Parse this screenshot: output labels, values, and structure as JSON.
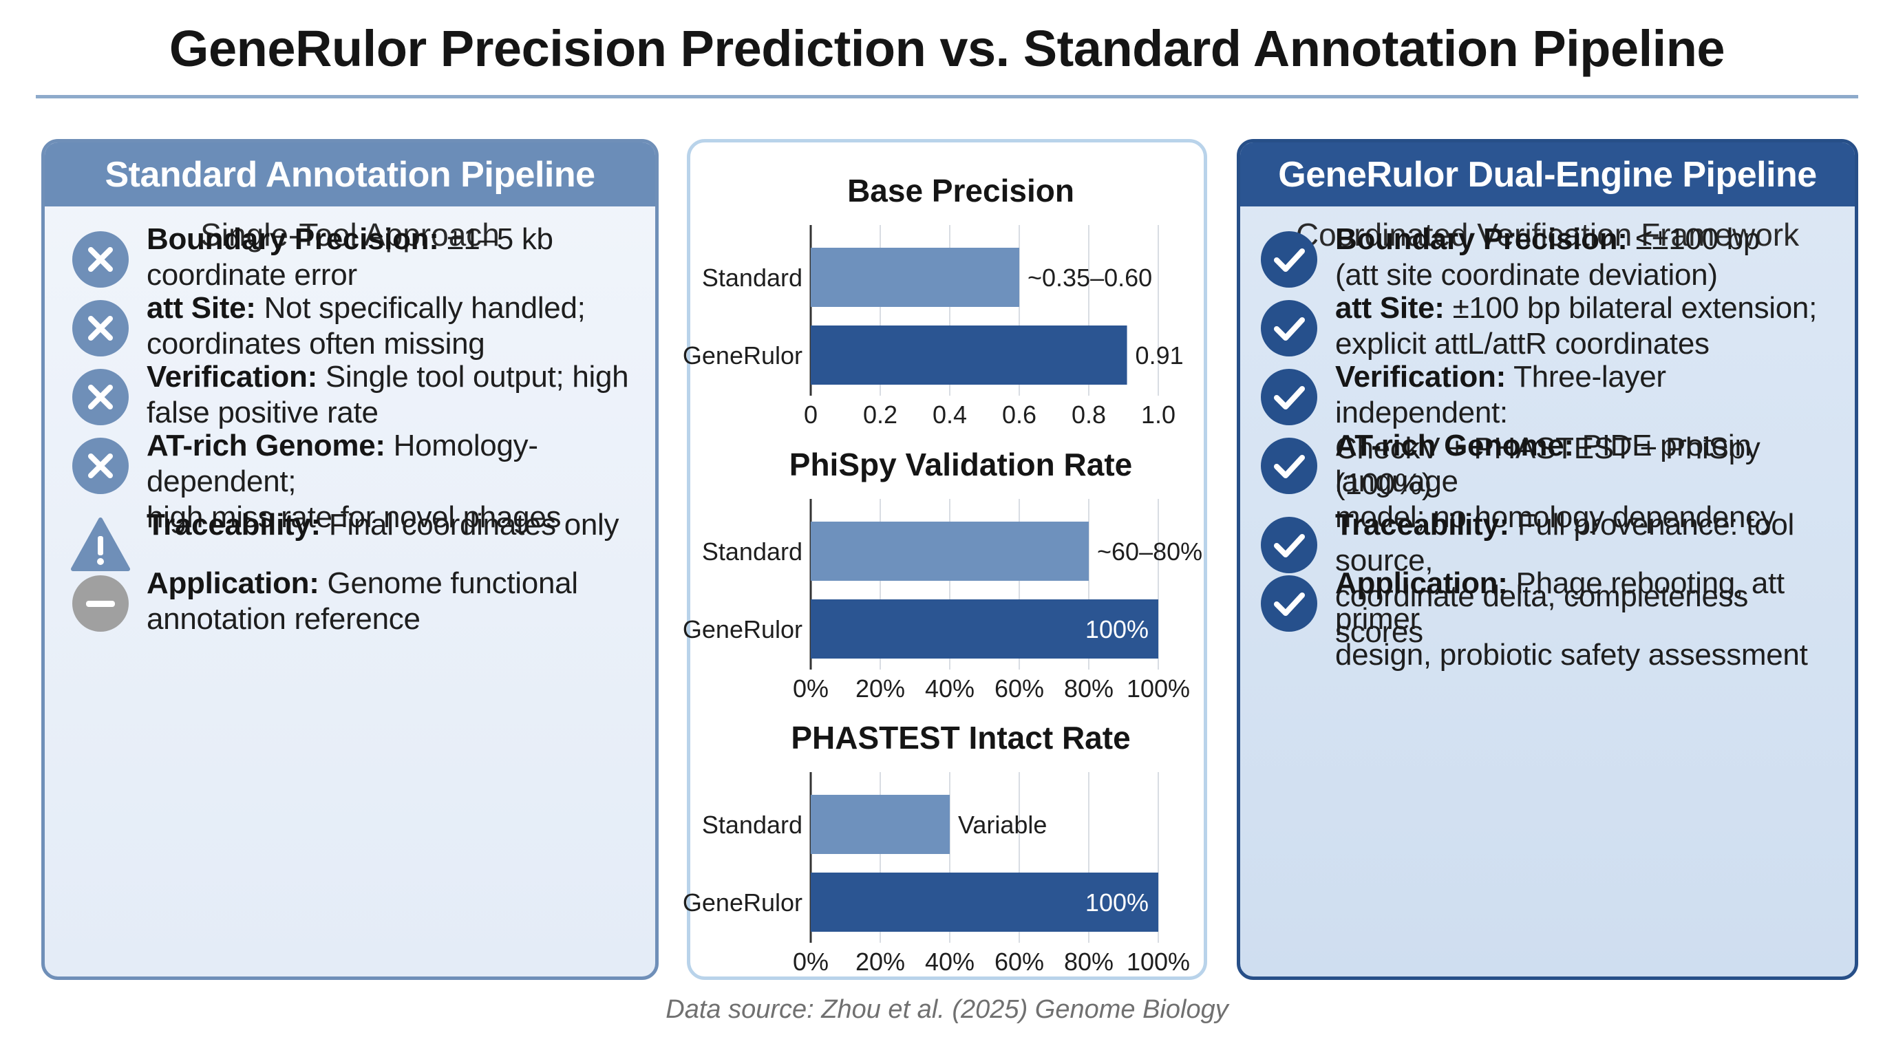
{
  "title": "GeneRulor Precision Prediction vs. Standard Annotation Pipeline",
  "colors": {
    "standard_bar": "#6e91bd",
    "generulor_bar": "#2b5592",
    "left_header": "#6b8db8",
    "right_header": "#2b5592",
    "cross_icon": "#6f8fb8",
    "check_icon": "#26508c",
    "neutral_icon": "#a0a0a0"
  },
  "left_panel": {
    "header": "Standard Annotation Pipeline",
    "subtitle": "Single-Tool Approach",
    "items": [
      {
        "icon": "cross-icon",
        "label": "Boundary Precision:",
        "line1": "±1–5 kb",
        "line2": "coordinate error"
      },
      {
        "icon": "cross-icon",
        "label": "att Site:",
        "line1": "Not specifically handled;",
        "line2": "coordinates often missing"
      },
      {
        "icon": "cross-icon",
        "label": "Verification:",
        "line1": "Single tool output; high",
        "line2": "false positive rate"
      },
      {
        "icon": "cross-icon",
        "label": "AT-rich Genome:",
        "line1": "Homology-dependent;",
        "line2": "high miss rate for novel phages"
      },
      {
        "icon": "warning-icon",
        "label": "Traceability:",
        "line1": "Final coordinates only",
        "line2": ""
      },
      {
        "icon": "minus-icon",
        "label": "Application:",
        "line1": "Genome functional",
        "line2": "annotation reference"
      }
    ]
  },
  "right_panel": {
    "header": "GeneRulor Dual-Engine Pipeline",
    "subtitle": "Coordinated Verification Framework",
    "items": [
      {
        "icon": "check-icon",
        "label": "Boundary Precision:",
        "line1": "≤±100 bp",
        "line2": "(att site coordinate deviation)"
      },
      {
        "icon": "check-icon",
        "label": "att Site:",
        "line1": "±100 bp bilateral extension;",
        "line2": "explicit attL/attR coordinates"
      },
      {
        "icon": "check-icon",
        "label": "Verification:",
        "line1": "Three-layer independent:",
        "line2": "CheckV + PHASTEST + PhiSpy (100%)"
      },
      {
        "icon": "check-icon",
        "label": "AT-rich Genome:",
        "line1": "PIDE protein language",
        "line2": "model; no homology dependency"
      },
      {
        "icon": "check-icon",
        "label": "Traceability:",
        "line1": "Full provenance: tool source,",
        "line2": "coordinate delta, completeness scores"
      },
      {
        "icon": "check-icon",
        "label": "Application:",
        "line1": "Phage rebooting, att primer",
        "line2": "design, probiotic safety assessment"
      }
    ]
  },
  "chart_data": [
    {
      "type": "bar",
      "orientation": "horizontal",
      "title": "Base Precision",
      "categories": [
        "Standard",
        "GeneRulor"
      ],
      "values": [
        0.6,
        0.91
      ],
      "value_labels": [
        "~0.35–0.60",
        "0.91"
      ],
      "xlim": [
        0,
        1.0
      ],
      "ticks": [
        "0",
        "0.2",
        "0.4",
        "0.6",
        "0.8",
        "1.0"
      ],
      "grid": true
    },
    {
      "type": "bar",
      "orientation": "horizontal",
      "title": "PhiSpy Validation Rate",
      "categories": [
        "Standard",
        "GeneRulor"
      ],
      "values": [
        80,
        100
      ],
      "value_labels": [
        "~60–80%",
        "100%"
      ],
      "xlim": [
        0,
        100
      ],
      "ticks": [
        "0%",
        "20%",
        "40%",
        "60%",
        "80%",
        "100%"
      ],
      "grid": true
    },
    {
      "type": "bar",
      "orientation": "horizontal",
      "title": "PHASTEST Intact Rate",
      "categories": [
        "Standard",
        "GeneRulor"
      ],
      "values": [
        40,
        100
      ],
      "value_labels": [
        "Variable",
        "100%"
      ],
      "xlim": [
        0,
        100
      ],
      "ticks": [
        "0%",
        "20%",
        "40%",
        "60%",
        "80%",
        "100%"
      ],
      "grid": true
    }
  ],
  "source": "Data source: Zhou et al. (2025) Genome Biology"
}
